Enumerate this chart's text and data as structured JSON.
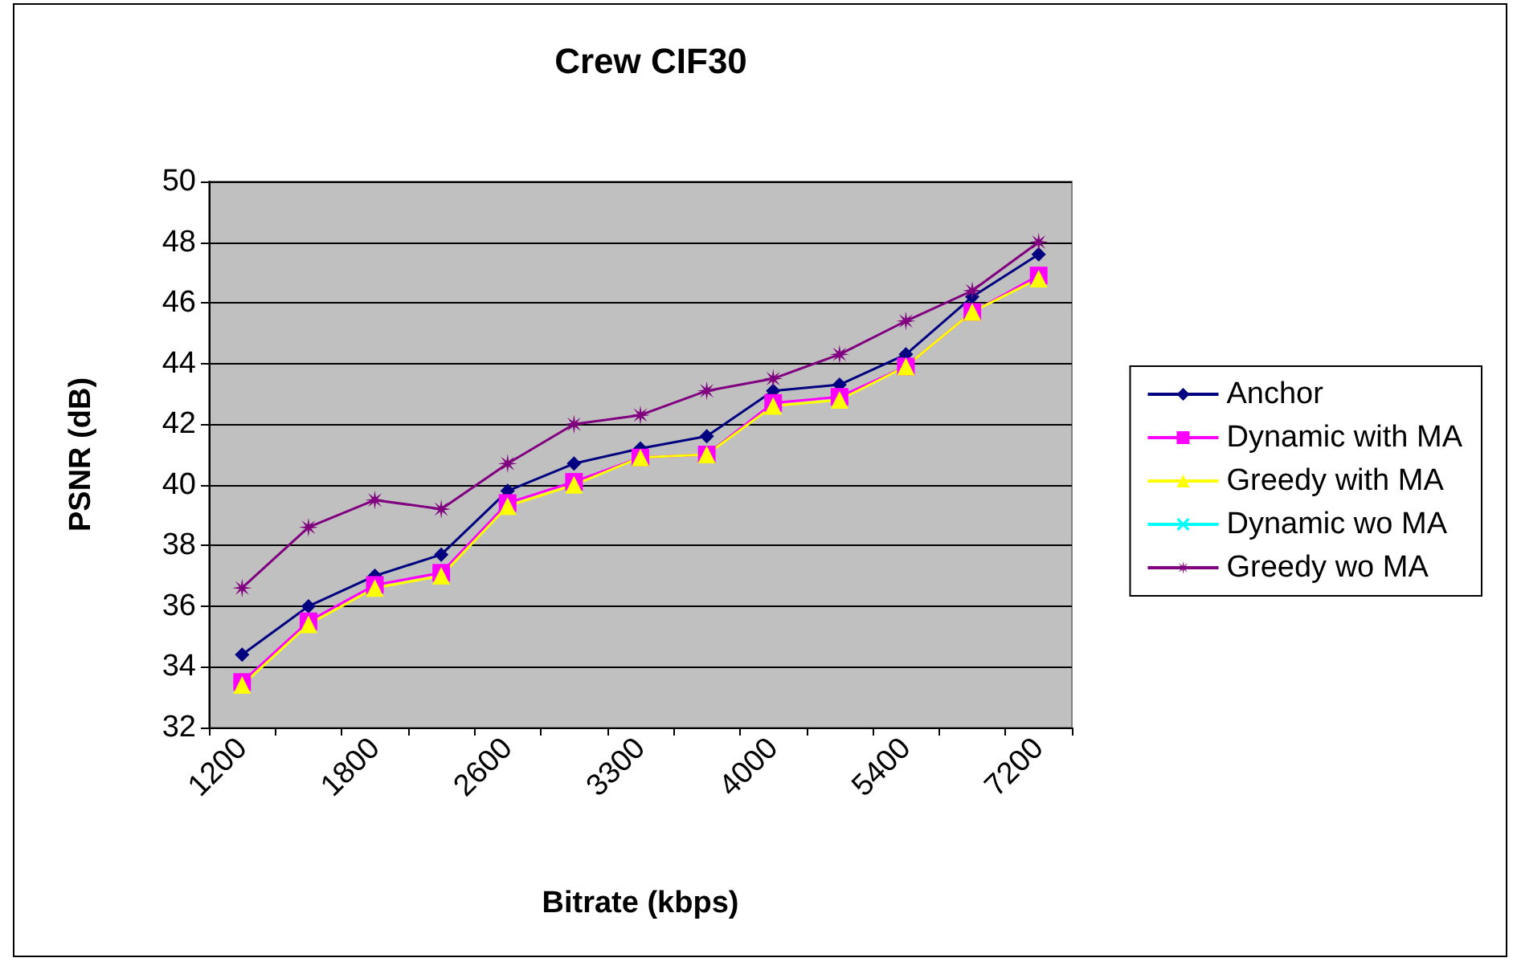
{
  "chart_data": {
    "type": "line",
    "title": "Crew CIF30",
    "xlabel": "Bitrate (kbps)",
    "ylabel": "PSNR (dB)",
    "categories": [
      "1200",
      null,
      "1800",
      null,
      "2600",
      null,
      "3300",
      null,
      "4000",
      null,
      "5400",
      null,
      "7200"
    ],
    "series": [
      {
        "name": "Anchor",
        "color": "#000080",
        "marker": "diamond",
        "values": [
          34.4,
          36.0,
          37.0,
          37.7,
          39.8,
          40.7,
          41.2,
          41.6,
          43.1,
          43.3,
          44.3,
          46.2,
          47.6
        ]
      },
      {
        "name": "Dynamic with MA",
        "color": "#ff00ff",
        "marker": "square",
        "values": [
          33.5,
          35.5,
          36.7,
          37.1,
          39.4,
          40.1,
          40.9,
          41.0,
          42.7,
          42.9,
          43.9,
          45.7,
          46.9
        ]
      },
      {
        "name": "Greedy with MA",
        "color": "#ffff00",
        "marker": "triangle",
        "values": [
          33.4,
          35.4,
          36.6,
          37.0,
          39.3,
          40.0,
          40.9,
          41.0,
          42.6,
          42.8,
          43.9,
          45.7,
          46.8
        ]
      },
      {
        "name": "Dynamic wo MA",
        "color": "#00ffff",
        "marker": "cross",
        "values": [
          null,
          null,
          null,
          null,
          null,
          null,
          null,
          null,
          null,
          null,
          null,
          null,
          null
        ]
      },
      {
        "name": "Greedy wo MA",
        "color": "#800080",
        "marker": "star",
        "values": [
          36.6,
          38.6,
          39.5,
          39.2,
          40.7,
          42.0,
          42.3,
          43.1,
          43.5,
          44.3,
          45.4,
          46.4,
          48.0
        ]
      }
    ],
    "ylim": [
      32,
      50
    ],
    "yticks": [
      32,
      34,
      36,
      38,
      40,
      42,
      44,
      46,
      48,
      50
    ],
    "grid": "y",
    "legend": "right"
  }
}
